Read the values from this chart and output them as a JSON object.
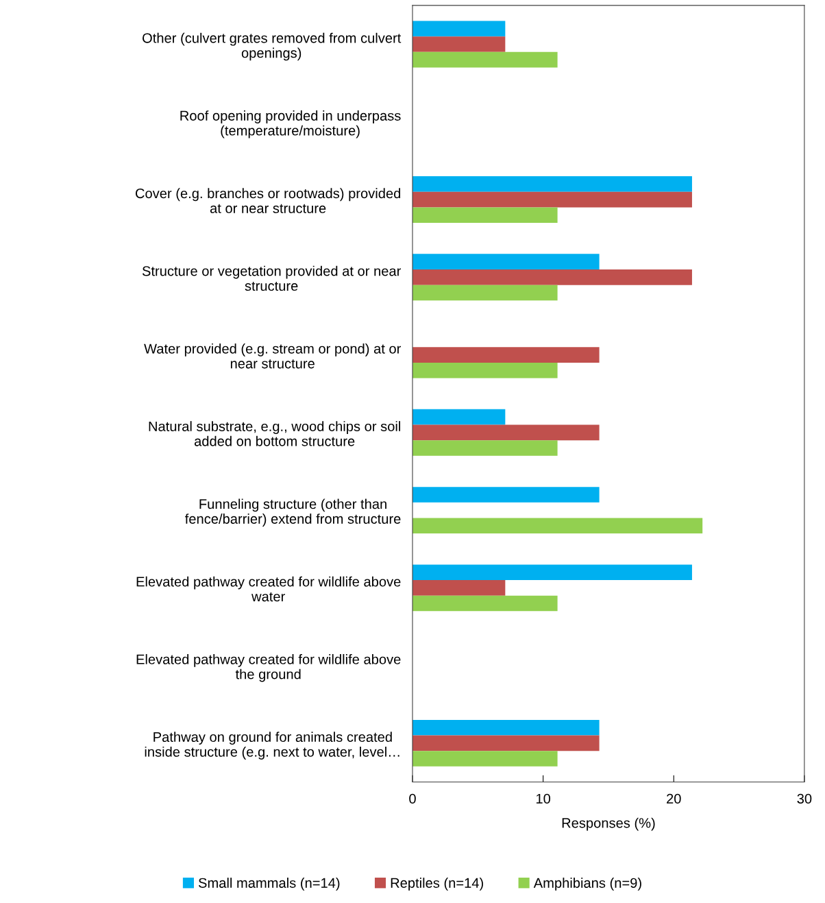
{
  "chart_data": {
    "type": "bar",
    "orientation": "horizontal",
    "xlabel": "Responses (%)",
    "categories": [
      "Other (culvert grates removed from culvert\nopenings)",
      "Roof opening provided in underpass\n(temperature/moisture)",
      "Cover (e.g. branches or rootwads) provided\nat or near structure",
      "Structure or vegetation provided at or near\nstructure",
      "Water provided (e.g. stream or pond) at or\nnear structure",
      "Natural substrate, e.g., wood chips or soil\nadded on bottom structure",
      "Funneling structure (other than\nfence/barrier) extend from structure",
      "Elevated pathway created for wildlife above\nwater",
      "Elevated pathway created for wildlife above\nthe ground",
      "Pathway on ground for animals created\ninside structure (e.g. next to water, level…"
    ],
    "series": [
      {
        "name": "Small mammals (n=14)",
        "color": "#00b0f0",
        "values": [
          7.1,
          0,
          21.4,
          14.3,
          0,
          7.1,
          14.3,
          21.4,
          0,
          14.3
        ]
      },
      {
        "name": "Reptiles (n=14)",
        "color": "#c0504d",
        "values": [
          7.1,
          0,
          21.4,
          21.4,
          14.3,
          14.3,
          0,
          7.1,
          0,
          14.3
        ]
      },
      {
        "name": "Amphibians (n=9)",
        "color": "#92d050",
        "values": [
          11.1,
          0,
          11.1,
          11.1,
          11.1,
          11.1,
          22.2,
          11.1,
          0,
          11.1
        ]
      }
    ],
    "xlim": [
      0,
      30
    ],
    "xticks": [
      0,
      10,
      20,
      30
    ],
    "grid": false,
    "legend": "bottom"
  }
}
